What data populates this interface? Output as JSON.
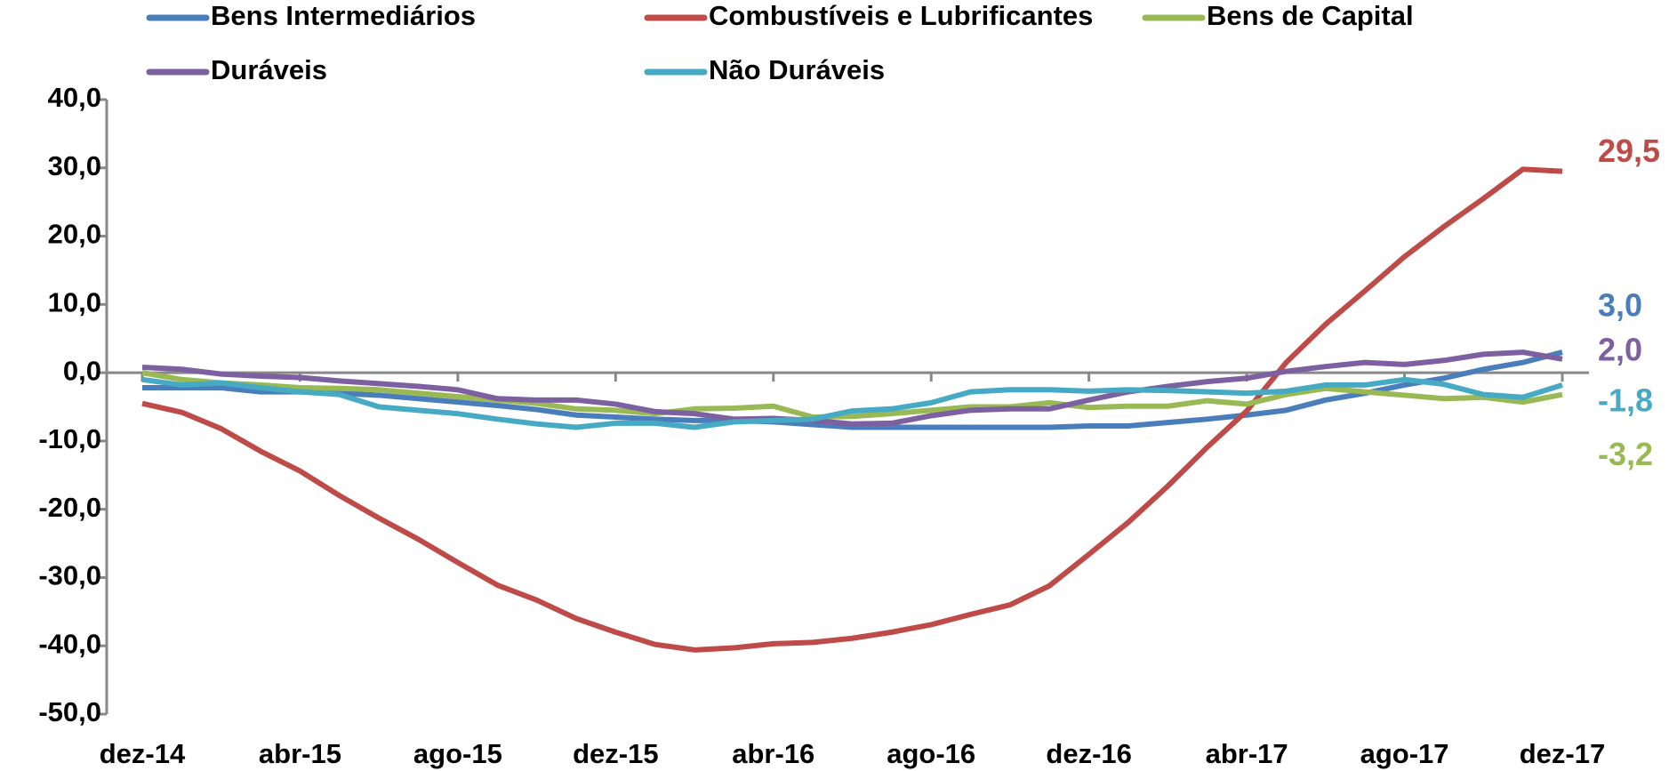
{
  "chart_data": {
    "type": "line",
    "categories": [
      "dez-14",
      null,
      null,
      null,
      "abr-15",
      null,
      null,
      null,
      "ago-15",
      null,
      null,
      null,
      "dez-15",
      null,
      null,
      null,
      "abr-16",
      null,
      null,
      null,
      "ago-16",
      null,
      null,
      null,
      "dez-16",
      null,
      null,
      null,
      "abr-17",
      null,
      null,
      null,
      "ago-17",
      null,
      null,
      null,
      "dez-17"
    ],
    "ylim": [
      -50,
      40
    ],
    "yticks": [
      {
        "value": -50,
        "label": "-50,0"
      },
      {
        "value": -40,
        "label": "-40,0"
      },
      {
        "value": -30,
        "label": "-30,0"
      },
      {
        "value": -20,
        "label": "-20,0"
      },
      {
        "value": -10,
        "label": "-10,0"
      },
      {
        "value": 0,
        "label": "0,0"
      },
      {
        "value": 10,
        "label": "10,0"
      },
      {
        "value": 20,
        "label": "20,0"
      },
      {
        "value": 30,
        "label": "30,0"
      },
      {
        "value": 40,
        "label": "40,0"
      }
    ],
    "grid": false,
    "legend": "top",
    "series": [
      {
        "name": "Bens Intermediários",
        "color": "#4a7ebb",
        "values": [
          -2.2,
          -2.2,
          -2.2,
          -2.8,
          -2.8,
          -3,
          -3.3,
          -3.8,
          -4.3,
          -4.8,
          -5.4,
          -6.2,
          -6.5,
          -6.8,
          -7,
          -7,
          -7.2,
          -7.6,
          -8,
          -8,
          -8,
          -8,
          -8,
          -8,
          -7.8,
          -7.8,
          -7.3,
          -6.8,
          -6.2,
          -5.5,
          -4,
          -3,
          -1.8,
          -0.8,
          0.5,
          1.5,
          3.0
        ],
        "value_labels": [
          null,
          null,
          null,
          null,
          null,
          null,
          null,
          null,
          null,
          null,
          null,
          null,
          null,
          null,
          null,
          null,
          null,
          null,
          null,
          null,
          null,
          null,
          null,
          null,
          null,
          null,
          null,
          null,
          null,
          null,
          null,
          null,
          null,
          null,
          null,
          null,
          "3,0"
        ]
      },
      {
        "name": "Combustíveis e Lubrificantes",
        "color": "#be4b48",
        "values": [
          -4.5,
          -5.8,
          -8.2,
          -11.5,
          -14.4,
          -18,
          -21.3,
          -24.4,
          -27.8,
          -31.1,
          -33.3,
          -36,
          -38,
          -39.8,
          -40.6,
          -40.3,
          -39.7,
          -39.5,
          -38.9,
          -38,
          -36.9,
          -35.4,
          -34,
          -31.2,
          -26.6,
          -21.9,
          -16.6,
          -10.9,
          -5.6,
          1.5,
          7.1,
          12,
          17,
          21.4,
          25.5,
          29.8,
          29.5
        ],
        "value_labels": [
          null,
          null,
          null,
          null,
          null,
          null,
          null,
          null,
          null,
          null,
          null,
          null,
          null,
          null,
          null,
          null,
          null,
          null,
          null,
          null,
          null,
          null,
          null,
          null,
          null,
          null,
          null,
          null,
          null,
          null,
          null,
          null,
          null,
          null,
          null,
          null,
          "29,5"
        ]
      },
      {
        "name": "Bens de Capital",
        "color": "#98b954",
        "values": [
          0,
          -1,
          -1.5,
          -1.8,
          -2.2,
          -2.3,
          -2.5,
          -3,
          -3.5,
          -4,
          -4.5,
          -5.3,
          -5.5,
          -6,
          -5.3,
          -5.2,
          -4.9,
          -6.5,
          -6.4,
          -6,
          -5.5,
          -5,
          -5,
          -4.4,
          -5.1,
          -4.9,
          -4.9,
          -4.1,
          -4.6,
          -3.2,
          -2.3,
          -2.8,
          -3.3,
          -3.8,
          -3.6,
          -4.3,
          -3.2
        ],
        "value_labels": [
          null,
          null,
          null,
          null,
          null,
          null,
          null,
          null,
          null,
          null,
          null,
          null,
          null,
          null,
          null,
          null,
          null,
          null,
          null,
          null,
          null,
          null,
          null,
          null,
          null,
          null,
          null,
          null,
          null,
          null,
          null,
          null,
          null,
          null,
          null,
          null,
          "-3,2"
        ]
      },
      {
        "name": "Duráveis",
        "color": "#7d60a0",
        "values": [
          0.8,
          0.5,
          -0.2,
          -0.5,
          -0.7,
          -1.2,
          -1.6,
          -2,
          -2.5,
          -3.8,
          -4,
          -4,
          -4.6,
          -5.7,
          -6,
          -6.8,
          -6.7,
          -7,
          -7.5,
          -7.4,
          -6.3,
          -5.5,
          -5.3,
          -5.3,
          -4,
          -2.8,
          -2,
          -1.3,
          -0.8,
          0.2,
          0.9,
          1.5,
          1.2,
          1.8,
          2.7,
          3,
          2.0
        ],
        "value_labels": [
          null,
          null,
          null,
          null,
          null,
          null,
          null,
          null,
          null,
          null,
          null,
          null,
          null,
          null,
          null,
          null,
          null,
          null,
          null,
          null,
          null,
          null,
          null,
          null,
          null,
          null,
          null,
          null,
          null,
          null,
          null,
          null,
          null,
          null,
          null,
          null,
          "2,0"
        ]
      },
      {
        "name": "Não Duráveis",
        "color": "#46aac5",
        "values": [
          -1,
          -1.8,
          -1.5,
          -2.2,
          -2.8,
          -3.2,
          -5,
          -5.5,
          -6,
          -6.8,
          -7.5,
          -8,
          -7.4,
          -7.4,
          -8,
          -7.2,
          -7,
          -6.8,
          -5.6,
          -5.3,
          -4.4,
          -2.8,
          -2.5,
          -2.5,
          -2.7,
          -2.5,
          -2.6,
          -2.8,
          -3,
          -2.7,
          -1.8,
          -1.8,
          -1,
          -1.7,
          -3.2,
          -3.6,
          -1.8
        ],
        "value_labels": [
          null,
          null,
          null,
          null,
          null,
          null,
          null,
          null,
          null,
          null,
          null,
          null,
          null,
          null,
          null,
          null,
          null,
          null,
          null,
          null,
          null,
          null,
          null,
          null,
          null,
          null,
          null,
          null,
          null,
          null,
          null,
          null,
          null,
          null,
          null,
          null,
          "-1,8"
        ]
      }
    ]
  }
}
